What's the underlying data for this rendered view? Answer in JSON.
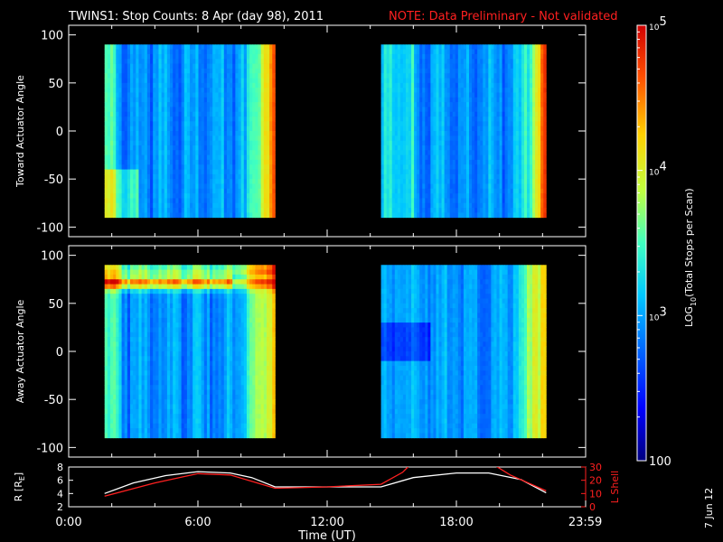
{
  "title": {
    "main": "TWINS1: Stop Counts:  8 Apr (day  98), 2011",
    "note": "NOTE: Data Preliminary - Not validated",
    "note_color": "#ff2020"
  },
  "stamp": "7 Jun 12",
  "chart_data": [
    {
      "id": "toward",
      "type": "heatmap",
      "ylabel": "Toward Actuator Angle",
      "ylim": [
        -110,
        110
      ],
      "yticks": [
        -100,
        -50,
        0,
        50,
        100
      ],
      "data_blocks": [
        {
          "start": "1:40",
          "end": "9:35",
          "angle_range": [
            -90,
            90
          ]
        },
        {
          "start": "14:30",
          "end": "22:10",
          "angle_range": [
            -90,
            90
          ]
        }
      ],
      "log10_counts_typical": {
        "left_edge": 3.6,
        "middle": 2.9,
        "right_edge": 4.6
      }
    },
    {
      "id": "away",
      "type": "heatmap",
      "ylabel": "Away Actuator Angle",
      "ylim": [
        -110,
        110
      ],
      "yticks": [
        -100,
        -50,
        0,
        50,
        100
      ],
      "data_blocks": [
        {
          "start": "1:40",
          "end": "9:35",
          "angle_range": [
            -90,
            90
          ]
        },
        {
          "start": "14:30",
          "end": "22:10",
          "angle_range": [
            -90,
            90
          ]
        }
      ],
      "log10_counts_typical": {
        "top_band_at_70deg": 4.7,
        "middle": 2.9,
        "right_edge": 4.3
      }
    },
    {
      "id": "orbit",
      "type": "line",
      "ylabel_left": "R [R",
      "ylabel_left_sub": "E",
      "ylabel_left_end": "]",
      "ylabel_right": "L Shell",
      "ylim_left": [
        2,
        8
      ],
      "yticks_left": [
        2,
        4,
        6,
        8
      ],
      "ylim_right": [
        0,
        30
      ],
      "yticks_right": [
        0,
        10,
        20,
        30
      ],
      "series": [
        {
          "name": "R",
          "color": "#ffffff",
          "axis": "left",
          "x": [
            "1:40",
            "3:00",
            "4:30",
            "6:00",
            "7:30",
            "8:30",
            "9:35",
            "12:00",
            "14:30",
            "16:00",
            "18:00",
            "19:30",
            "21:00",
            "22:10"
          ],
          "values": [
            4.0,
            5.6,
            6.7,
            7.3,
            7.1,
            6.4,
            5.0,
            5.0,
            5.0,
            6.4,
            7.1,
            7.1,
            6.1,
            4.1
          ]
        },
        {
          "name": "L Shell",
          "color": "#ff2020",
          "axis": "right",
          "x": [
            "1:40",
            "4:00",
            "6:00",
            "7:30",
            "9:35",
            "12:00",
            "14:30",
            "15:30",
            "16:00"
          ],
          "values": [
            8,
            18,
            25,
            24,
            14,
            15,
            17,
            26,
            34
          ],
          "x2": [
            "19:30",
            "20:30",
            "22:10"
          ],
          "values2": [
            34,
            24,
            12
          ]
        }
      ],
      "xlabel": "Time (UT)",
      "xticks": [
        "0:00",
        "6:00",
        "12:00",
        "18:00",
        "23:59"
      ]
    }
  ],
  "colorbar": {
    "label_main": "LOG",
    "label_sub": "10",
    "label_end": "(Total Stops per Scan)",
    "ticks": [
      {
        "log": 2,
        "base": "100",
        "exp": ""
      },
      {
        "log": 3,
        "base": "10",
        "exp": "3"
      },
      {
        "log": 4,
        "base": "10",
        "exp": "4"
      },
      {
        "log": 5,
        "base": "10",
        "exp": "5"
      }
    ],
    "range": [
      2,
      5
    ]
  }
}
